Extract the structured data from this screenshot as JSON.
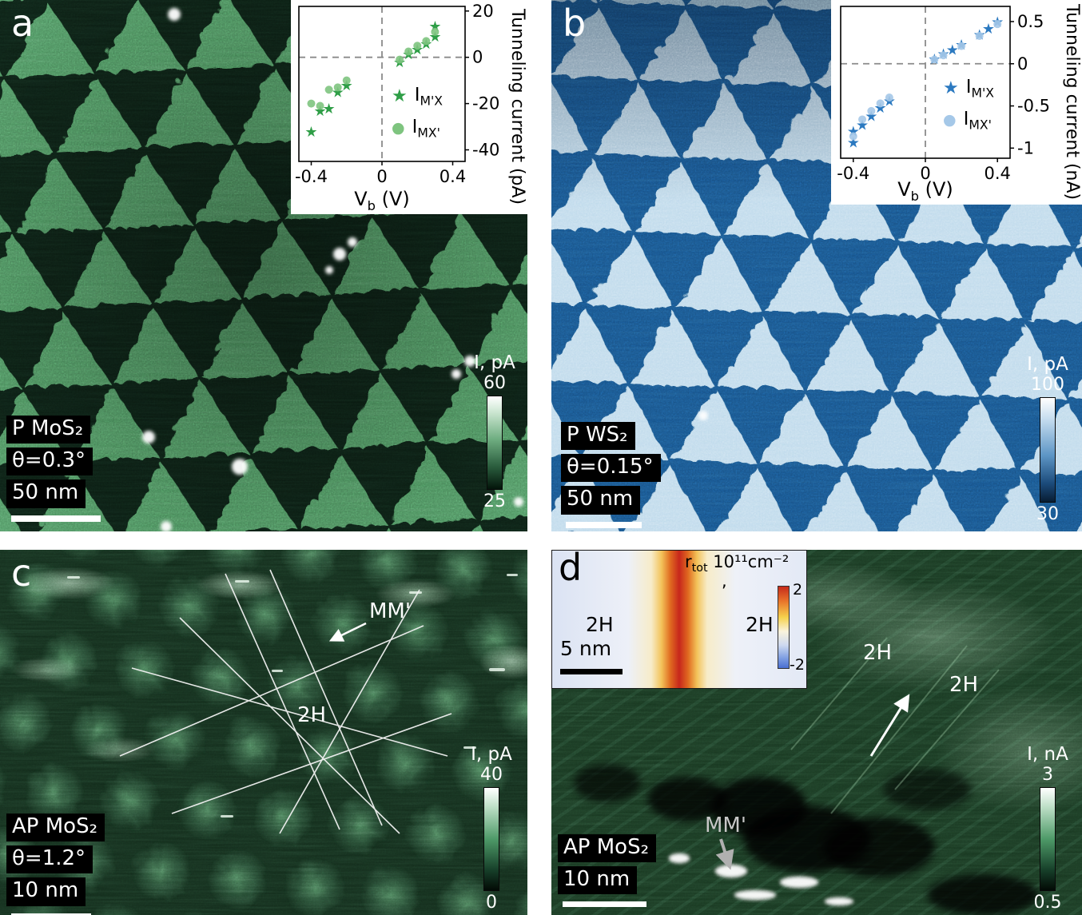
{
  "figure": {
    "background": "#ffffff",
    "panels": {
      "a": {
        "letter": "a",
        "sample_label": "P MoS₂",
        "twist_label": "θ=0.3°",
        "scalebar_label": "50 nm",
        "image_colors": {
          "bright_domain": "#58a76d",
          "dark_domain": "#0c2315"
        },
        "colorbar": {
          "title": "I, pA",
          "max": "60",
          "min": "25",
          "gradient": [
            "#ffffff",
            "#cfe8d4 16%",
            "#6fae81 46%",
            "#2a5c3d 76%",
            "#03140a"
          ]
        },
        "inset": {
          "ylabel": "Tunneling current (pA)",
          "xlabel_main": "V",
          "xlabel_sub": "b",
          "xlabel_rest": " (V)"
        }
      },
      "b": {
        "letter": "b",
        "sample_label": "P WS₂",
        "twist_label": "θ=0.15°",
        "scalebar_label": "50 nm",
        "image_colors": {
          "bright_domain": "#bdd9eb",
          "dark_domain": "#175085"
        },
        "colorbar": {
          "title": "I, pA",
          "max": "100",
          "min": "30",
          "gradient": [
            "#ffffff",
            "#c6ddef 20%",
            "#5e96c6 55%",
            "#1c4c7c 82%",
            "#081d33"
          ]
        },
        "inset": {
          "ylabel": "Tunneling current (nA)",
          "xlabel_main": "V",
          "xlabel_sub": "b",
          "xlabel_rest": " (V)"
        }
      },
      "c": {
        "letter": "c",
        "sample_label": "AP MoS₂",
        "twist_label": "θ=1.2°",
        "scalebar_label": "10 nm",
        "colorbar": {
          "title": "I, pA",
          "max": "40",
          "min": "0",
          "gradient": [
            "#ffffff",
            "#bfe0c8 18%",
            "#4e9a68 50%",
            "#17402a 80%",
            "#020a05"
          ]
        },
        "annotations": {
          "mm": "MM'",
          "h2": "2H"
        }
      },
      "d": {
        "letter": "d",
        "sample_label": "AP MoS₂",
        "scalebar_label": "10 nm",
        "colorbar": {
          "title": "I, nA",
          "max": "3",
          "min": "0.5",
          "gradient": [
            "#ffffff",
            "#bfe0c8 18%",
            "#4e9a68 50%",
            "#17402a 80%",
            "#020a05"
          ]
        },
        "annotations": {
          "mm": "MM'",
          "h2_upper": "2H",
          "h2_lower": "2H"
        },
        "inset": {
          "h2_left": "2H",
          "h2_right": "2H",
          "scalebar_label": "5 nm",
          "colorbar": {
            "title_main": "r",
            "title_sub": "tot",
            "title_unit": " 10¹¹cm⁻²",
            "wrap": ",",
            "max": "2",
            "min": "-2",
            "gradient": [
              "#c62a1b",
              "#e9742a 18%",
              "#f6d24e 38%",
              "#faf3dc 55%",
              "#cdd9f0 72%",
              "#7d9de2 88%",
              "#4a6fd2"
            ]
          },
          "map_gradient": {
            "dir": "to right",
            "stops": [
              "#dbe3f3 0%",
              "#edf0f8 30%",
              "#f7ecc9 39%",
              "#f3c35a 43%",
              "#e06a20 46.5%",
              "#c7271c 50%",
              "#e06a20 53.5%",
              "#f3c35a 57%",
              "#f7ecc9 61%",
              "#eef1f8 72%",
              "#e3e9f6 100%"
            ]
          }
        }
      }
    }
  },
  "chart_data": [
    {
      "type": "scatter",
      "panel": "a",
      "title": "",
      "xlabel": "V_b (V)",
      "ylabel": "Tunneling current (pA)",
      "xlim": [
        -0.47,
        0.47
      ],
      "ylim": [
        -45,
        22
      ],
      "xticks": [
        -0.4,
        0,
        0.4
      ],
      "yticks": [
        20,
        0,
        -20,
        -40
      ],
      "grid": false,
      "legend_position": "center-right",
      "zero_crosshair": true,
      "series": [
        {
          "name": "I_M'X",
          "label_main": "I",
          "label_sub": "M'X",
          "marker": "star",
          "color": "#2f9e47",
          "x": [
            -0.4,
            -0.35,
            -0.3,
            -0.25,
            -0.2,
            0.1,
            0.15,
            0.2,
            0.25,
            0.3,
            0.3
          ],
          "y": [
            -32,
            -23,
            -22,
            -15,
            -12,
            -2,
            1.5,
            3.5,
            6,
            9,
            13.5
          ]
        },
        {
          "name": "I_MX'",
          "label_main": "I",
          "label_sub": "MX'",
          "marker": "circle",
          "color": "#7ec47f",
          "x": [
            -0.4,
            -0.35,
            -0.3,
            -0.25,
            -0.2,
            0.1,
            0.15,
            0.2,
            0.25,
            0.3
          ],
          "y": [
            -20,
            -21,
            -14,
            -13,
            -10,
            -1,
            2.5,
            5,
            7,
            11
          ]
        }
      ]
    },
    {
      "type": "scatter",
      "panel": "b",
      "title": "",
      "xlabel": "V_b (V)",
      "ylabel": "Tunneling current (nA)",
      "xlim": [
        -0.47,
        0.47
      ],
      "ylim": [
        -1.12,
        0.68
      ],
      "xticks": [
        -0.4,
        0,
        0.4
      ],
      "yticks": [
        0.5,
        0,
        -0.5,
        -1
      ],
      "grid": false,
      "legend_position": "center-right",
      "zero_crosshair": true,
      "series": [
        {
          "name": "I_M'X",
          "label_main": "I",
          "label_sub": "M'X",
          "marker": "star",
          "color": "#2b79c0",
          "x": [
            -0.4,
            -0.4,
            -0.35,
            -0.3,
            -0.25,
            -0.2,
            0.05,
            0.1,
            0.15,
            0.2,
            0.3,
            0.35,
            0.4
          ],
          "y": [
            -0.93,
            -0.8,
            -0.72,
            -0.62,
            -0.52,
            -0.44,
            0.06,
            0.12,
            0.17,
            0.23,
            0.35,
            0.42,
            0.5
          ]
        },
        {
          "name": "I_MX'",
          "label_main": "I",
          "label_sub": "MX'",
          "marker": "circle",
          "color": "#a5c8e8",
          "x": [
            -0.4,
            -0.35,
            -0.3,
            -0.25,
            -0.2,
            0.05,
            0.1,
            0.2,
            0.3,
            0.4
          ],
          "y": [
            -0.86,
            -0.66,
            -0.56,
            -0.47,
            -0.4,
            0.05,
            0.1,
            0.21,
            0.33,
            0.47
          ]
        }
      ]
    }
  ]
}
